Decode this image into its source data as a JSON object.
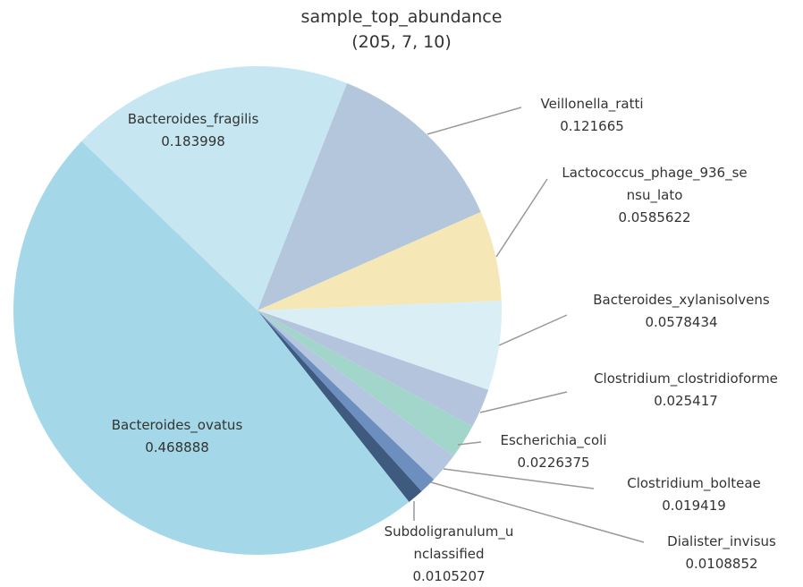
{
  "chart_data": {
    "type": "pie",
    "title": "sample_top_abundance",
    "subtitle": "(205, 7, 10)",
    "categories": [
      "Veillonella_ratti",
      "Lactococcus_phage_936_sensu_lato",
      "Bacteroides_xylanisolvens",
      "Clostridium_clostridioforme",
      "Escherichia_coli",
      "Clostridium_bolteae",
      "Dialister_invisus",
      "Subdoligranulum_unclassified",
      "Bacteroides_ovatus",
      "Bacteroides_fragilis"
    ],
    "values": [
      0.121665,
      0.0585622,
      0.0578434,
      0.025417,
      0.0226375,
      0.019419,
      0.0108852,
      0.0105207,
      0.468888,
      0.183998
    ],
    "colors": [
      "#b3c6dc",
      "#f6e7b7",
      "#daeef6",
      "#b4c4dd",
      "#a2d6ca",
      "#b5c7e0",
      "#6d8fbf",
      "#3f5a7f",
      "#a4d8e8",
      "#c6e6f1"
    ]
  }
}
